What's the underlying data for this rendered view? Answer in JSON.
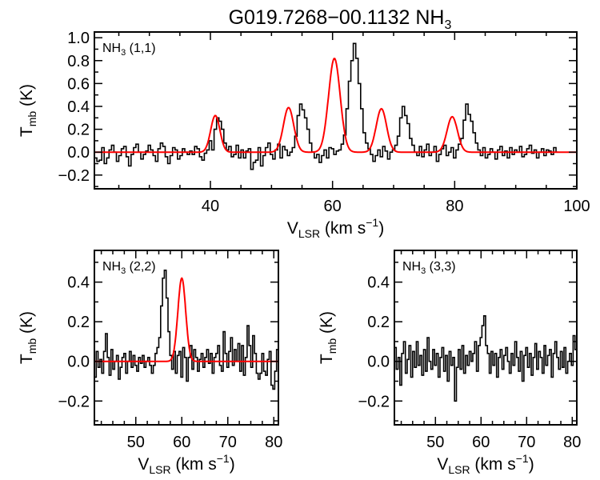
{
  "title": "G019.7268−00.1132 NH",
  "title_sub": "3",
  "chart_data": [
    {
      "type": "line",
      "panel": "top",
      "label_base": "NH",
      "label_sub": "3",
      "label_rest": " (1,1)",
      "xlabel_base": "V",
      "xlabel_sub": "LSR",
      "xlabel_rest": " (km s",
      "xlabel_sup": "−1",
      "xlabel_end": ")",
      "ylabel_base": "T",
      "ylabel_sub": "mb",
      "ylabel_rest": " (K)",
      "xlim": [
        21,
        100
      ],
      "ylim": [
        -0.32,
        1.05
      ],
      "xticks": [
        40,
        60,
        80,
        100
      ],
      "yticks": [
        -0.2,
        0.0,
        0.2,
        0.4,
        0.6,
        0.8,
        1.0
      ],
      "ytick_labels": [
        "−0.2",
        "0.0",
        "0.2",
        "0.4",
        "0.6",
        "0.8",
        "1.0"
      ],
      "spectrum_color": "#000000",
      "fit_color": "#ff0000",
      "fit_components": [
        {
          "center": 40.8,
          "amplitude": 0.32,
          "sigma": 0.75
        },
        {
          "center": 52.8,
          "amplitude": 0.39,
          "sigma": 0.85
        },
        {
          "center": 60.3,
          "amplitude": 0.82,
          "sigma": 0.95
        },
        {
          "center": 68.0,
          "amplitude": 0.38,
          "sigma": 0.85
        },
        {
          "center": 79.6,
          "amplitude": 0.31,
          "sigma": 0.85
        }
      ],
      "spectrum": {
        "x_start": 21.2,
        "dx": 0.4,
        "values": [
          -0.05,
          -0.08,
          -0.07,
          0.04,
          -0.1,
          -0.05,
          0.02,
          0.06,
          0.0,
          -0.08,
          -0.03,
          0.03,
          0.05,
          -0.04,
          -0.12,
          -0.02,
          0.04,
          0.07,
          0.0,
          -0.06,
          -0.02,
          0.01,
          0.06,
          0.02,
          -0.03,
          -0.08,
          0.03,
          0.08,
          0.05,
          -0.04,
          -0.1,
          -0.03,
          0.04,
          0.02,
          -0.06,
          -0.03,
          0.03,
          0.0,
          -0.02,
          0.01,
          -0.02,
          0.05,
          0.03,
          -0.04,
          -0.07,
          -0.01,
          0.02,
          0.1,
          0.02,
          0.2,
          0.3,
          0.27,
          0.2,
          0.08,
          0.02,
          0.05,
          -0.04,
          -0.02,
          0.06,
          -0.05,
          0.02,
          -0.05,
          0.01,
          0.03,
          -0.15,
          -0.09,
          -0.07,
          0.04,
          -0.12,
          -0.03,
          0.04,
          0.08,
          -0.02,
          -0.06,
          0.02,
          0.07,
          -0.05,
          0.05,
          0.02,
          -0.03,
          0.0,
          0.04,
          0.14,
          0.32,
          0.42,
          0.37,
          0.3,
          0.2,
          0.08,
          0.0,
          -0.05,
          -0.02,
          -0.09,
          -0.03,
          0.02,
          -0.05,
          0.04,
          0.03,
          -0.02,
          0.01,
          0.02,
          0.07,
          0.15,
          0.38,
          0.62,
          0.8,
          0.95,
          0.82,
          0.6,
          0.38,
          0.17,
          0.08,
          0.03,
          -0.02,
          -0.08,
          -0.03,
          0.02,
          -0.04,
          0.05,
          0.01,
          -0.06,
          0.0,
          0.02,
          0.06,
          0.14,
          0.3,
          0.4,
          0.32,
          0.25,
          0.12,
          0.06,
          0.0,
          -0.03,
          0.05,
          -0.04,
          0.02,
          0.07,
          -0.03,
          0.0,
          0.05,
          -0.08,
          -0.02,
          0.03,
          0.06,
          -0.03,
          0.0,
          0.04,
          -0.05,
          0.02,
          0.07,
          0.12,
          0.28,
          0.42,
          0.33,
          0.27,
          0.17,
          0.08,
          0.02,
          -0.03,
          0.04,
          -0.05,
          -0.02,
          0.03,
          0.0,
          -0.06,
          0.02,
          0.05,
          -0.03,
          0.01,
          -0.05,
          0.04,
          -0.02,
          0.02,
          0.0,
          0.05,
          -0.04,
          -0.02,
          0.03,
          0.06,
          -0.01,
          0.02,
          -0.05,
          0.0,
          0.03,
          -0.03,
          0.02,
          0.01,
          -0.02,
          0.04,
          0.0
        ]
      }
    },
    {
      "type": "line",
      "panel": "bottom-left",
      "label_base": "NH",
      "label_sub": "3",
      "label_rest": " (2,2)",
      "xlabel_base": "V",
      "xlabel_sub": "LSR",
      "xlabel_rest": " (km s",
      "xlabel_sup": "−1",
      "xlabel_end": ")",
      "ylabel_base": "T",
      "ylabel_sub": "mb",
      "ylabel_rest": " (K)",
      "xlim": [
        41,
        81
      ],
      "ylim": [
        -0.32,
        0.56
      ],
      "xticks": [
        50,
        60,
        70,
        80
      ],
      "yticks": [
        -0.2,
        0.0,
        0.2,
        0.4
      ],
      "ytick_labels": [
        "−0.2",
        "0.0",
        "0.2",
        "0.4"
      ],
      "spectrum_color": "#000000",
      "fit_color": "#ff0000",
      "fit_components": [
        {
          "center": 60.0,
          "amplitude": 0.42,
          "sigma": 0.85
        }
      ],
      "spectrum": {
        "x_start": 41.2,
        "dx": 0.4,
        "values": [
          -0.08,
          0.05,
          -0.03,
          0.01,
          -0.06,
          0.05,
          0.14,
          0.02,
          -0.07,
          0.06,
          -0.04,
          0.0,
          0.03,
          -0.09,
          -0.03,
          0.02,
          0.04,
          -0.06,
          0.0,
          0.05,
          -0.03,
          0.03,
          -0.02,
          -0.05,
          0.02,
          -0.01,
          0.03,
          -0.03,
          0.0,
          0.02,
          -0.02,
          -0.06,
          -0.02,
          0.04,
          0.07,
          0.12,
          0.28,
          0.42,
          0.46,
          0.32,
          0.15,
          0.03,
          -0.04,
          0.05,
          -0.06,
          0.03,
          0.05,
          -0.08,
          0.07,
          0.02,
          -0.1,
          0.02,
          0.08,
          -0.04,
          0.06,
          0.02,
          -0.05,
          0.01,
          0.04,
          -0.03,
          0.02,
          0.06,
          -0.01,
          0.04,
          -0.06,
          0.02,
          0.04,
          0.08,
          -0.02,
          -0.05,
          0.15,
          0.04,
          -0.03,
          0.05,
          0.12,
          -0.02,
          0.06,
          0.0,
          0.09,
          -0.05,
          0.08,
          -0.07,
          0.02,
          0.18,
          0.08,
          -0.03,
          0.13,
          0.04,
          -0.06,
          -0.09,
          -0.06,
          0.04,
          -0.05,
          -0.07,
          0.01,
          0.05,
          -0.12,
          -0.14,
          -0.05,
          0.06
        ]
      }
    },
    {
      "type": "line",
      "panel": "bottom-right",
      "label_base": "NH",
      "label_sub": "3",
      "label_rest": " (3,3)",
      "xlabel_base": "V",
      "xlabel_sub": "LSR",
      "xlabel_rest": " (km s",
      "xlabel_sup": "−1",
      "xlabel_end": ")",
      "ylabel_base": "T",
      "ylabel_sub": "mb",
      "ylabel_rest": " (K)",
      "xlim": [
        41,
        81
      ],
      "ylim": [
        -0.32,
        0.56
      ],
      "xticks": [
        50,
        60,
        70,
        80
      ],
      "yticks": [
        -0.2,
        0.0,
        0.2,
        0.4
      ],
      "ytick_labels": [
        "−0.2",
        "0.0",
        "0.2",
        "0.4"
      ],
      "spectrum_color": "#000000",
      "fit_components": [],
      "spectrum": {
        "x_start": 41.2,
        "dx": 0.4,
        "values": [
          0.07,
          -0.04,
          0.02,
          -0.12,
          0.04,
          0.1,
          -0.06,
          0.01,
          0.08,
          -0.08,
          0.05,
          -0.03,
          0.1,
          -0.02,
          0.03,
          -0.07,
          0.06,
          -0.05,
          0.12,
          0.0,
          -0.04,
          0.06,
          -0.02,
          0.04,
          -0.08,
          0.02,
          0.07,
          -0.05,
          0.03,
          -0.1,
          0.05,
          -0.02,
          0.02,
          -0.2,
          -0.03,
          0.06,
          -0.04,
          0.08,
          -0.06,
          0.03,
          -0.02,
          0.05,
          0.0,
          0.04,
          0.1,
          -0.05,
          0.08,
          0.12,
          0.18,
          0.23,
          0.08,
          0.04,
          -0.06,
          0.05,
          -0.02,
          0.04,
          -0.08,
          0.02,
          0.06,
          -0.04,
          0.03,
          0.07,
          0.0,
          -0.06,
          0.04,
          -0.02,
          0.1,
          0.02,
          -0.05,
          0.05,
          -0.1,
          0.03,
          0.07,
          -0.03,
          0.04,
          -0.07,
          0.02,
          0.09,
          -0.04,
          0.05,
          0.02,
          -0.06,
          0.08,
          -0.02,
          0.03,
          0.06,
          -0.08,
          0.04,
          0.1,
          0.02,
          -0.04,
          0.05,
          -0.03,
          0.07,
          -0.06,
          0.0,
          0.04,
          -0.02,
          0.13,
          0.06
        ]
      }
    }
  ]
}
